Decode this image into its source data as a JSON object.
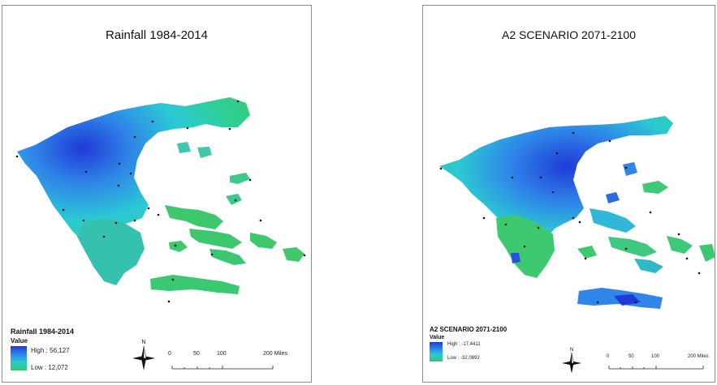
{
  "maps": [
    {
      "title": "Rainfall 1984-2014",
      "legend": {
        "title": "Rainfall 1984-2014",
        "field": "Value",
        "high_label": "High : 56,127",
        "low_label": "Low : 12,072",
        "colors": [
          "#1f3ad8",
          "#2f86e8",
          "#2bc9d4",
          "#35c96a"
        ]
      },
      "north_label": "N",
      "scale": {
        "ticks": [
          "0",
          "50",
          "100",
          "200 Miles"
        ]
      }
    },
    {
      "title": "A2 SCENARIO 2071-2100",
      "legend": {
        "title": "A2 SCENARIO 2071-2100",
        "field": "Value",
        "high_label": "High : -17,4411",
        "low_label": "Low : -32,0892",
        "colors": [
          "#1f3ad8",
          "#2f86e8",
          "#2bc9d4",
          "#35c96a"
        ]
      },
      "north_label": "N",
      "scale": {
        "ticks": [
          "0",
          "50",
          "100",
          "200 Miles"
        ]
      }
    }
  ]
}
